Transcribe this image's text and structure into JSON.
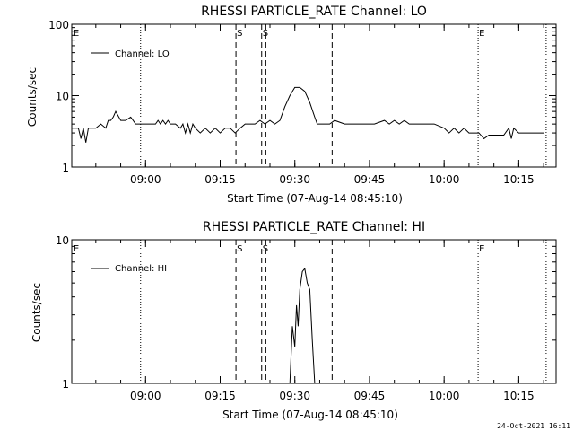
{
  "footer": {
    "timestamp": "24-Oct-2021 16:11"
  },
  "chart_data": [
    {
      "type": "line",
      "title": "RHESSI PARTICLE_RATE Channel: LO",
      "xlabel": "Start Time (07-Aug-14 08:45:10)",
      "ylabel": "Counts/sec",
      "yscale": "log",
      "ylim": [
        1,
        100
      ],
      "xlim": [
        "08:45:10",
        "10:22:30"
      ],
      "yticks": [
        1,
        10,
        100
      ],
      "ytick_labels": [
        "1",
        "10",
        "100"
      ],
      "xticks": [
        "09:00",
        "09:15",
        "09:30",
        "09:45",
        "10:00",
        "10:15"
      ],
      "legend": {
        "position": "top-left",
        "entries": [
          "Channel: LO"
        ]
      },
      "markers": [
        {
          "time": "08:45:20",
          "label": "E",
          "style": "none"
        },
        {
          "time": "08:59:00",
          "label": "",
          "style": "dotted"
        },
        {
          "time": "09:18:10",
          "label": "S",
          "style": "dashed"
        },
        {
          "time": "09:23:20",
          "label": "S",
          "style": "dashed"
        },
        {
          "time": "09:24:10",
          "label": "",
          "style": "dashed"
        },
        {
          "time": "09:37:30",
          "label": "",
          "style": "dashed"
        },
        {
          "time": "10:06:50",
          "label": "E",
          "style": "dotted"
        },
        {
          "time": "10:20:30",
          "label": "",
          "style": "dotted"
        }
      ],
      "series": [
        {
          "name": "Channel: LO",
          "x": [
            "08:45:10",
            "08:46:30",
            "08:47:00",
            "08:47:30",
            "08:48:00",
            "08:48:30",
            "08:49:00",
            "08:50:00",
            "08:51:00",
            "08:52:00",
            "08:52:30",
            "08:53:00",
            "08:53:30",
            "08:54:00",
            "08:55:00",
            "08:56:00",
            "08:57:00",
            "08:57:30",
            "08:58:00",
            "08:59:00",
            "09:00:00",
            "09:01:00",
            "09:02:00",
            "09:02:30",
            "09:03:00",
            "09:03:30",
            "09:04:00",
            "09:04:30",
            "09:05:00",
            "09:06:00",
            "09:07:00",
            "09:07:30",
            "09:08:00",
            "09:08:30",
            "09:09:00",
            "09:09:30",
            "09:10:00",
            "09:11:00",
            "09:12:00",
            "09:13:00",
            "09:14:00",
            "09:15:00",
            "09:16:00",
            "09:17:00",
            "09:18:00",
            "09:19:00",
            "09:20:00",
            "09:21:00",
            "09:22:00",
            "09:23:00",
            "09:24:00",
            "09:25:00",
            "09:26:00",
            "09:27:00",
            "09:28:00",
            "09:29:00",
            "09:30:00",
            "09:31:00",
            "09:32:00",
            "09:33:00",
            "09:34:00",
            "09:34:30",
            "09:35:00",
            "09:36:00",
            "09:37:00",
            "09:38:00",
            "09:40:00",
            "09:42:00",
            "09:44:00",
            "09:46:00",
            "09:48:00",
            "09:49:00",
            "09:50:00",
            "09:51:00",
            "09:52:00",
            "09:53:00",
            "09:54:00",
            "09:55:00",
            "09:56:00",
            "09:58:00",
            "10:00:00",
            "10:01:00",
            "10:02:00",
            "10:03:00",
            "10:04:00",
            "10:05:00",
            "10:06:00",
            "10:07:00",
            "10:08:00",
            "10:09:00",
            "10:10:00",
            "10:11:00",
            "10:12:00",
            "10:13:00",
            "10:13:30",
            "10:14:00",
            "10:15:00",
            "10:17:00",
            "10:19:00",
            "10:20:00"
          ],
          "y": [
            3.5,
            3.5,
            2.5,
            3.5,
            2.2,
            3.5,
            3.5,
            3.5,
            4.0,
            3.5,
            4.5,
            4.5,
            5.0,
            6.0,
            4.5,
            4.5,
            5.0,
            4.5,
            4.0,
            4.0,
            4.0,
            4.0,
            4.0,
            4.5,
            4.0,
            4.5,
            4.0,
            4.5,
            4.0,
            4.0,
            3.5,
            4.0,
            3.0,
            4.0,
            3.0,
            4.0,
            3.5,
            3.0,
            3.5,
            3.0,
            3.5,
            3.0,
            3.5,
            3.5,
            3.0,
            3.5,
            4.0,
            4.0,
            4.0,
            4.5,
            4.0,
            4.5,
            4.0,
            4.5,
            7.0,
            10.0,
            13.0,
            13.0,
            11.5,
            8.0,
            5.0,
            4.0,
            4.0,
            4.0,
            4.0,
            4.5,
            4.0,
            4.0,
            4.0,
            4.0,
            4.5,
            4.0,
            4.5,
            4.0,
            4.5,
            4.0,
            4.0,
            4.0,
            4.0,
            4.0,
            3.5,
            3.0,
            3.5,
            3.0,
            3.5,
            3.0,
            3.0,
            3.0,
            2.5,
            2.8,
            2.8,
            2.8,
            2.8,
            3.5,
            2.5,
            3.5,
            3.0,
            3.0,
            3.0,
            3.0
          ]
        }
      ]
    },
    {
      "type": "line",
      "title": "RHESSI PARTICLE_RATE Channel: HI",
      "xlabel": "Start Time (07-Aug-14 08:45:10)",
      "ylabel": "Counts/sec",
      "yscale": "log",
      "ylim": [
        1,
        10
      ],
      "xlim": [
        "08:45:10",
        "10:22:30"
      ],
      "yticks": [
        1,
        10
      ],
      "ytick_labels": [
        "1",
        "10"
      ],
      "xticks": [
        "09:00",
        "09:15",
        "09:30",
        "09:45",
        "10:00",
        "10:15"
      ],
      "legend": {
        "position": "top-left",
        "entries": [
          "Channel: HI"
        ]
      },
      "markers": [
        {
          "time": "08:45:20",
          "label": "E",
          "style": "none"
        },
        {
          "time": "08:59:00",
          "label": "",
          "style": "dotted"
        },
        {
          "time": "09:18:10",
          "label": "S",
          "style": "dashed"
        },
        {
          "time": "09:23:20",
          "label": "S",
          "style": "dashed"
        },
        {
          "time": "09:24:10",
          "label": "",
          "style": "dashed"
        },
        {
          "time": "09:37:30",
          "label": "",
          "style": "dashed"
        },
        {
          "time": "10:06:50",
          "label": "E",
          "style": "dotted"
        },
        {
          "time": "10:20:30",
          "label": "",
          "style": "dotted"
        }
      ],
      "series": [
        {
          "name": "Channel: HI",
          "x": [
            "09:29:00",
            "09:29:30",
            "09:30:00",
            "09:30:20",
            "09:30:40",
            "09:31:00",
            "09:31:30",
            "09:32:00",
            "09:32:30",
            "09:33:00",
            "09:33:30",
            "09:34:00"
          ],
          "y": [
            1.0,
            2.5,
            1.8,
            3.5,
            2.5,
            4.5,
            6.0,
            6.3,
            5.0,
            4.5,
            2.0,
            1.0
          ]
        }
      ]
    }
  ]
}
